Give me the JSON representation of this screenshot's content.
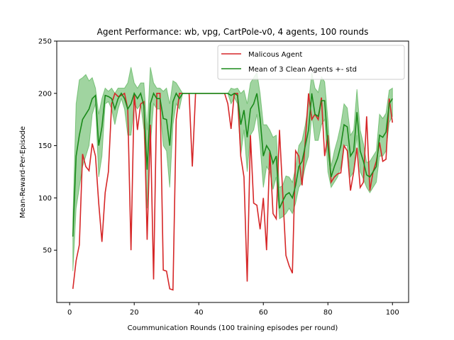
{
  "chart_data": {
    "type": "line",
    "title": "Agent Performance: wb, vpg, CartPole-v0, 4 agents, 100 rounds",
    "xlabel": "Coummunication Rounds (100 training episodes per round)",
    "ylabel": "Mean-Reward-Per-Episode",
    "xlim": [
      -4,
      105
    ],
    "ylim": [
      0,
      250
    ],
    "xticks": [
      0,
      20,
      40,
      60,
      80,
      100
    ],
    "yticks": [
      50,
      100,
      150,
      200,
      250
    ],
    "grid": false,
    "legend_position": "top-right",
    "x": [
      1,
      2,
      3,
      4,
      5,
      6,
      7,
      8,
      9,
      10,
      11,
      12,
      13,
      14,
      15,
      16,
      17,
      18,
      19,
      20,
      21,
      22,
      23,
      24,
      25,
      26,
      27,
      28,
      29,
      30,
      31,
      32,
      33,
      34,
      35,
      36,
      37,
      38,
      39,
      40,
      41,
      42,
      43,
      44,
      45,
      46,
      47,
      48,
      49,
      50,
      51,
      52,
      53,
      54,
      55,
      56,
      57,
      58,
      59,
      60,
      61,
      62,
      63,
      64,
      65,
      66,
      67,
      68,
      69,
      70,
      71,
      72,
      73,
      74,
      75,
      76,
      77,
      78,
      79,
      80,
      81,
      82,
      83,
      84,
      85,
      86,
      87,
      88,
      89,
      90,
      91,
      92,
      93,
      94,
      95,
      96,
      97,
      98,
      99,
      100
    ],
    "series": [
      {
        "name": "Malicous Agent",
        "color": "#d62728",
        "values": [
          13,
          40,
          55,
          142,
          130,
          126,
          152,
          140,
          95,
          58,
          105,
          125,
          190,
          200,
          197,
          198,
          200,
          185,
          50,
          200,
          165,
          190,
          192,
          60,
          170,
          22,
          200,
          200,
          31,
          30,
          13,
          12,
          175,
          200,
          200,
          200,
          200,
          130,
          200,
          200,
          200,
          200,
          200,
          200,
          200,
          200,
          200,
          200,
          190,
          166,
          200,
          200,
          140,
          120,
          20,
          160,
          95,
          93,
          70,
          100,
          50,
          145,
          85,
          80,
          165,
          105,
          45,
          35,
          28,
          145,
          140,
          112,
          155,
          200,
          175,
          180,
          175,
          196,
          140,
          160,
          115,
          120,
          123,
          124,
          150,
          145,
          107,
          125,
          148,
          110,
          115,
          178,
          107,
          125,
          135,
          153,
          135,
          137,
          195,
          172
        ]
      },
      {
        "name": "Mean of 3 Clean Agents +- std",
        "color": "#1a8a1a",
        "values": [
          63,
          140,
          160,
          175,
          180,
          185,
          195,
          198,
          150,
          168,
          198,
          197,
          195,
          185,
          195,
          200,
          195,
          185,
          190,
          200,
          195,
          200,
          188,
          127,
          190,
          200,
          195,
          195,
          176,
          175,
          150,
          192,
          200,
          195,
          200,
          200,
          200,
          200,
          200,
          200,
          200,
          200,
          200,
          200,
          200,
          200,
          200,
          200,
          200,
          198,
          200,
          198,
          170,
          184,
          158,
          185,
          190,
          200,
          176,
          140,
          150,
          145,
          133,
          140,
          90,
          97,
          103,
          105,
          100,
          112,
          130,
          135,
          150,
          165,
          200,
          180,
          178,
          193,
          193,
          150,
          120,
          130,
          138,
          150,
          170,
          168,
          140,
          145,
          182,
          145,
          135,
          122,
          120,
          125,
          130,
          160,
          158,
          163,
          190,
          195
        ]
      },
      {
        "name": "Mean of 3 Clean Agents +- std band",
        "lower": [
          30,
          90,
          110,
          130,
          140,
          150,
          180,
          190,
          120,
          140,
          190,
          192,
          185,
          170,
          185,
          195,
          185,
          160,
          160,
          190,
          185,
          190,
          165,
          90,
          150,
          190,
          185,
          185,
          150,
          145,
          110,
          170,
          190,
          185,
          200,
          200,
          200,
          200,
          200,
          200,
          200,
          200,
          200,
          200,
          200,
          200,
          200,
          200,
          200,
          190,
          196,
          190,
          140,
          165,
          125,
          160,
          165,
          180,
          150,
          110,
          130,
          125,
          108,
          120,
          80,
          82,
          85,
          90,
          85,
          95,
          110,
          115,
          130,
          140,
          180,
          155,
          155,
          170,
          175,
          125,
          110,
          115,
          120,
          130,
          150,
          150,
          120,
          125,
          160,
          125,
          118,
          110,
          105,
          110,
          115,
          140,
          140,
          145,
          172,
          178
        ],
        "upper": [
          80,
          190,
          213,
          215,
          218,
          212,
          215,
          205,
          180,
          195,
          205,
          202,
          205,
          200,
          205,
          205,
          205,
          210,
          225,
          210,
          205,
          210,
          210,
          165,
          225,
          210,
          205,
          205,
          202,
          205,
          190,
          212,
          210,
          205,
          200,
          200,
          200,
          200,
          200,
          200,
          200,
          200,
          200,
          200,
          200,
          200,
          200,
          200,
          200,
          205,
          204,
          205,
          200,
          203,
          190,
          210,
          215,
          220,
          200,
          170,
          170,
          165,
          158,
          160,
          110,
          112,
          121,
          120,
          115,
          129,
          150,
          155,
          170,
          190,
          220,
          205,
          201,
          216,
          211,
          175,
          130,
          145,
          156,
          170,
          190,
          186,
          160,
          165,
          204,
          165,
          152,
          134,
          135,
          140,
          145,
          180,
          176,
          181,
          203,
          205
        ]
      }
    ]
  }
}
